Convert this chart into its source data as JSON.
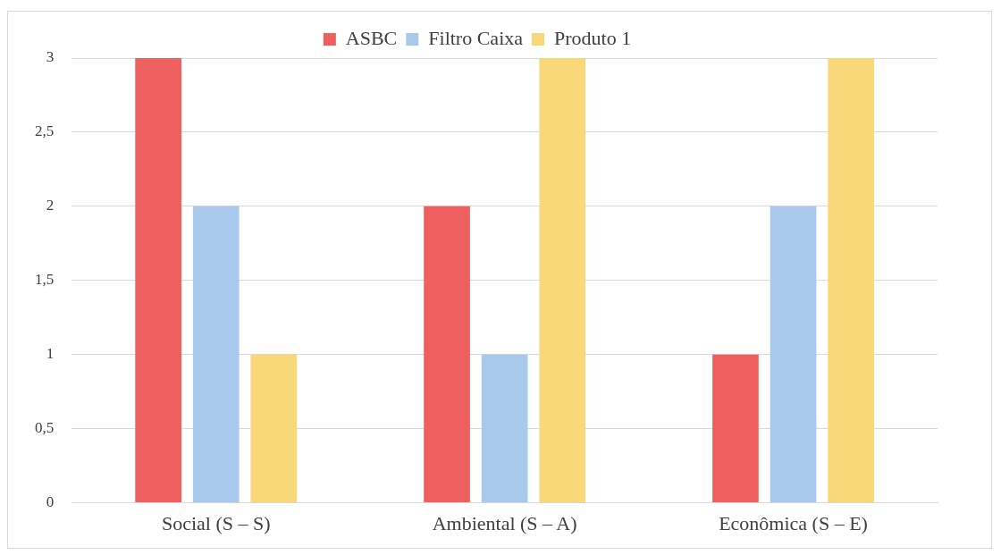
{
  "chart_data": {
    "type": "bar",
    "categories": [
      "Social (S – S)",
      "Ambiental (S – A)",
      "Econômica (S – E)"
    ],
    "series": [
      {
        "name": "ASBC",
        "color": "#ee5f5f",
        "values": [
          3,
          2,
          1
        ]
      },
      {
        "name": "Filtro Caixa",
        "color": "#a8c8ec",
        "values": [
          2,
          1,
          2
        ]
      },
      {
        "name": "Produto 1",
        "color": "#f8d878",
        "values": [
          1,
          3,
          3
        ]
      }
    ],
    "ylim": [
      0,
      3
    ],
    "yticks": [
      0,
      {
        "value": 0.5,
        "label": "0,5"
      },
      1,
      {
        "value": 1.5,
        "label": "1,5"
      },
      2,
      {
        "value": 2.5,
        "label": "2,5"
      },
      3
    ],
    "grid": "y",
    "legend": "top"
  }
}
